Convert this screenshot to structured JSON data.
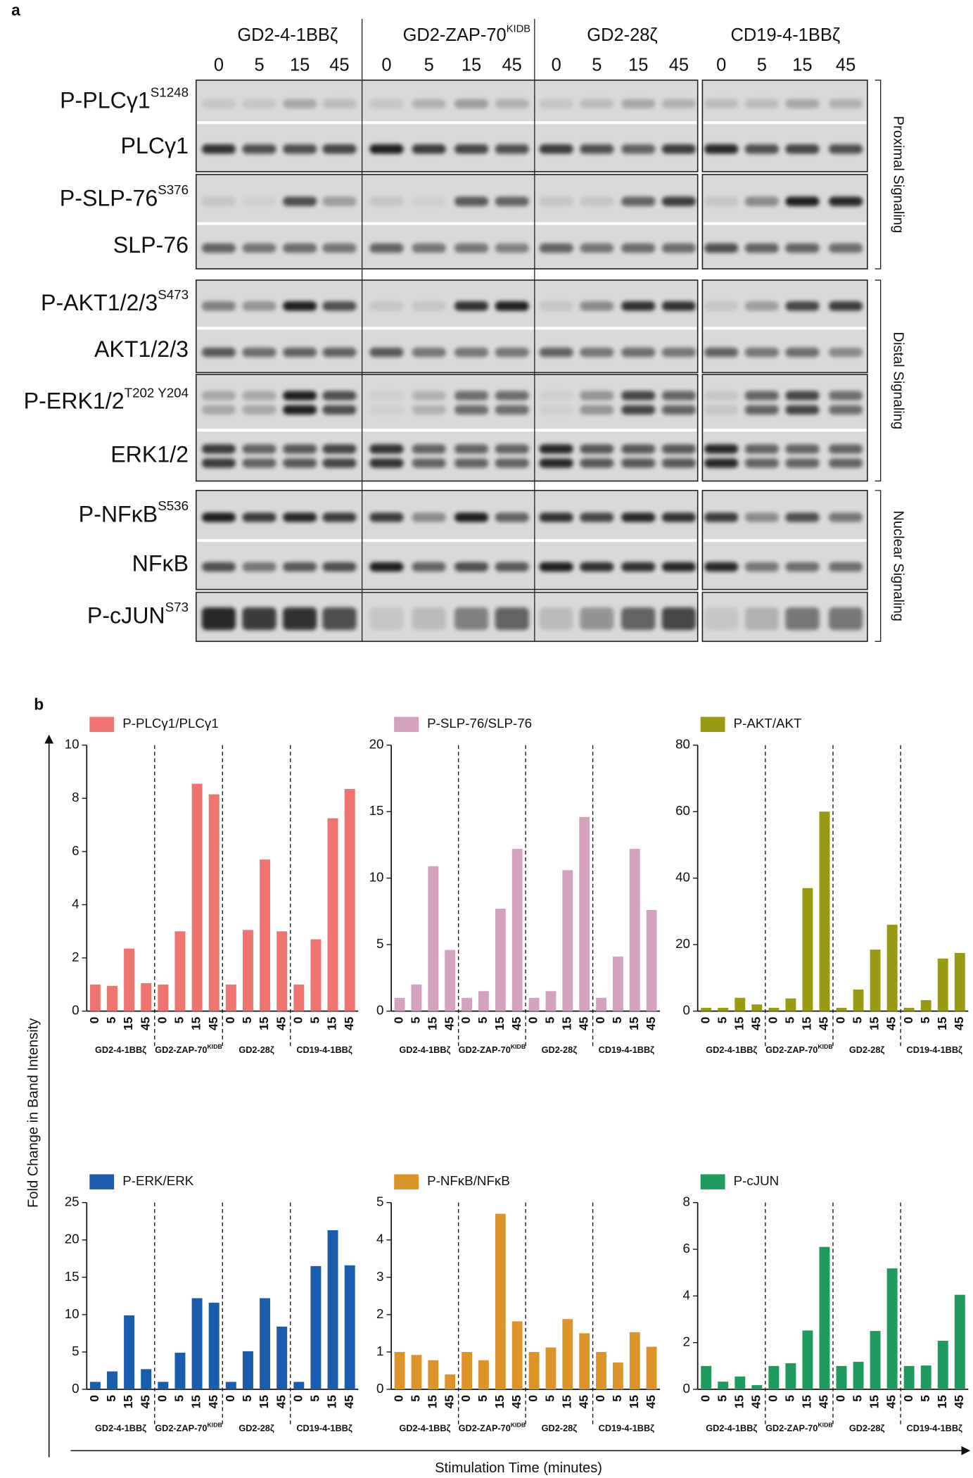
{
  "panel_labels": [
    "a",
    "b"
  ],
  "blot": {
    "groups": [
      {
        "name": "GD2-4-1BBζ"
      },
      {
        "name": "GD2-ZAP-70",
        "sup": "KIDB"
      },
      {
        "name": "GD2-28ζ"
      },
      {
        "name": "CD19-4-1BBζ"
      }
    ],
    "lanes": [
      "0",
      "5",
      "15",
      "45",
      "0",
      "5",
      "15",
      "45",
      "0",
      "5",
      "15",
      "45",
      "0",
      "5",
      "15",
      "45"
    ],
    "rows": [
      {
        "label": "P-PLCγ1",
        "sup": "S1248"
      },
      {
        "label": "PLCγ1"
      },
      {
        "label": "P-SLP-76",
        "sup": "S376"
      },
      {
        "label": "SLP-76"
      },
      {
        "label": "P-AKT1/2/3",
        "sup": "S473"
      },
      {
        "label": "AKT1/2/3"
      },
      {
        "label": "P-ERK1/2",
        "sup": "T202 Y204"
      },
      {
        "label": "ERK1/2"
      },
      {
        "label": "P-NFκB",
        "sup": "S536"
      },
      {
        "label": "NFκB"
      },
      {
        "label": "P-cJUN",
        "sup": "S73"
      }
    ],
    "sections": [
      "Proximal Signaling",
      "Distal Signaling",
      "Nuclear Signaling"
    ]
  },
  "y_label": "Fold Change in Band Intensity",
  "x_label": "Stimulation Time (minutes)",
  "chart_data": [
    {
      "type": "bar",
      "categories": [
        "0",
        "5",
        "15",
        "45",
        "0",
        "5",
        "15",
        "45",
        "0",
        "5",
        "15",
        "45",
        "0",
        "5",
        "15",
        "45"
      ],
      "groups": [
        {
          "name": "GD2-4-1BBζ"
        },
        {
          "name": "GD2-ZAP-70",
          "sup": "KIDB"
        },
        {
          "name": "GD2-28ζ"
        },
        {
          "name": "CD19-4-1BBζ"
        }
      ],
      "series": [
        {
          "name": "P-PLCγ1/PLCγ1",
          "color": "#ef736f",
          "values": [
            1,
            0.95,
            2.35,
            1.05,
            1,
            3,
            8.55,
            8.15,
            1,
            3.05,
            5.7,
            3,
            1,
            2.7,
            7.25,
            8.35
          ]
        }
      ],
      "ylim": [
        0,
        10
      ],
      "yticks": [
        0,
        2,
        4,
        6,
        8,
        10
      ]
    },
    {
      "type": "bar",
      "categories": [
        "0",
        "5",
        "15",
        "45",
        "0",
        "5",
        "15",
        "45",
        "0",
        "5",
        "15",
        "45",
        "0",
        "5",
        "15",
        "45"
      ],
      "groups": [
        {
          "name": "GD2-4-1BBζ"
        },
        {
          "name": "GD2-ZAP-70",
          "sup": "KIDB"
        },
        {
          "name": "GD2-28ζ"
        },
        {
          "name": "CD19-4-1BBζ"
        }
      ],
      "series": [
        {
          "name": "P-SLP-76/SLP-76",
          "color": "#d4a1bf",
          "values": [
            1,
            2,
            10.9,
            4.6,
            1,
            1.5,
            7.7,
            12.2,
            1,
            1.5,
            10.6,
            14.6,
            1,
            4.1,
            12.2,
            7.6
          ]
        }
      ],
      "ylim": [
        0,
        20
      ],
      "yticks": [
        0,
        5,
        10,
        15,
        20
      ]
    },
    {
      "type": "bar",
      "categories": [
        "0",
        "5",
        "15",
        "45",
        "0",
        "5",
        "15",
        "45",
        "0",
        "5",
        "15",
        "45",
        "0",
        "5",
        "15",
        "45"
      ],
      "groups": [
        {
          "name": "GD2-4-1BBζ"
        },
        {
          "name": "GD2-ZAP-70",
          "sup": "KIDB"
        },
        {
          "name": "GD2-28ζ"
        },
        {
          "name": "CD19-4-1BBζ"
        }
      ],
      "series": [
        {
          "name": "P-AKT/AKT",
          "color": "#9a9a12",
          "values": [
            1,
            1,
            4,
            2,
            1,
            3.8,
            37,
            60,
            1,
            6.5,
            18.5,
            26,
            1,
            3.3,
            15.8,
            17.5
          ]
        }
      ],
      "ylim": [
        0,
        80
      ],
      "yticks": [
        0,
        20,
        40,
        60,
        80
      ]
    },
    {
      "type": "bar",
      "categories": [
        "0",
        "5",
        "15",
        "45",
        "0",
        "5",
        "15",
        "45",
        "0",
        "5",
        "15",
        "45",
        "0",
        "5",
        "15",
        "45"
      ],
      "groups": [
        {
          "name": "GD2-4-1BBζ"
        },
        {
          "name": "GD2-ZAP-70",
          "sup": "KIDB"
        },
        {
          "name": "GD2-28ζ"
        },
        {
          "name": "CD19-4-1BBζ"
        }
      ],
      "series": [
        {
          "name": "P-ERK/ERK",
          "color": "#1a5daf",
          "values": [
            1,
            2.4,
            9.9,
            2.7,
            1,
            4.9,
            12.2,
            11.6,
            1,
            5.1,
            12.2,
            8.4,
            1,
            16.5,
            21.3,
            16.6
          ]
        }
      ],
      "ylim": [
        0,
        25
      ],
      "yticks": [
        0,
        5,
        10,
        15,
        20,
        25
      ]
    },
    {
      "type": "bar",
      "categories": [
        "0",
        "5",
        "15",
        "45",
        "0",
        "5",
        "15",
        "45",
        "0",
        "5",
        "15",
        "45",
        "0",
        "5",
        "15",
        "45"
      ],
      "groups": [
        {
          "name": "GD2-4-1BBζ"
        },
        {
          "name": "GD2-ZAP-70",
          "sup": "KIDB"
        },
        {
          "name": "GD2-28ζ"
        },
        {
          "name": "CD19-4-1BBζ"
        }
      ],
      "series": [
        {
          "name": "P-NFκB/NFκB",
          "color": "#dc9327",
          "values": [
            1,
            0.92,
            0.78,
            0.4,
            1,
            0.78,
            4.7,
            1.82,
            1,
            1.12,
            1.88,
            1.5,
            1,
            0.72,
            1.53,
            1.14
          ]
        }
      ],
      "ylim": [
        0,
        5
      ],
      "yticks": [
        0,
        1,
        2,
        3,
        4,
        5
      ]
    },
    {
      "type": "bar",
      "categories": [
        "0",
        "5",
        "15",
        "45",
        "0",
        "5",
        "15",
        "45",
        "0",
        "5",
        "15",
        "45",
        "0",
        "5",
        "15",
        "45"
      ],
      "groups": [
        {
          "name": "GD2-4-1BBζ"
        },
        {
          "name": "GD2-ZAP-70",
          "sup": "KIDB"
        },
        {
          "name": "GD2-28ζ"
        },
        {
          "name": "CD19-4-1BBζ"
        }
      ],
      "series": [
        {
          "name": "P-cJUN",
          "color": "#1f9a5e",
          "values": [
            1,
            0.33,
            0.55,
            0.18,
            1,
            1.12,
            2.52,
            6.1,
            1,
            1.18,
            2.5,
            5.18,
            1,
            1.02,
            2.08,
            4.05
          ]
        }
      ],
      "ylim": [
        0,
        8
      ],
      "yticks": [
        0,
        2,
        4,
        6,
        8
      ]
    }
  ]
}
